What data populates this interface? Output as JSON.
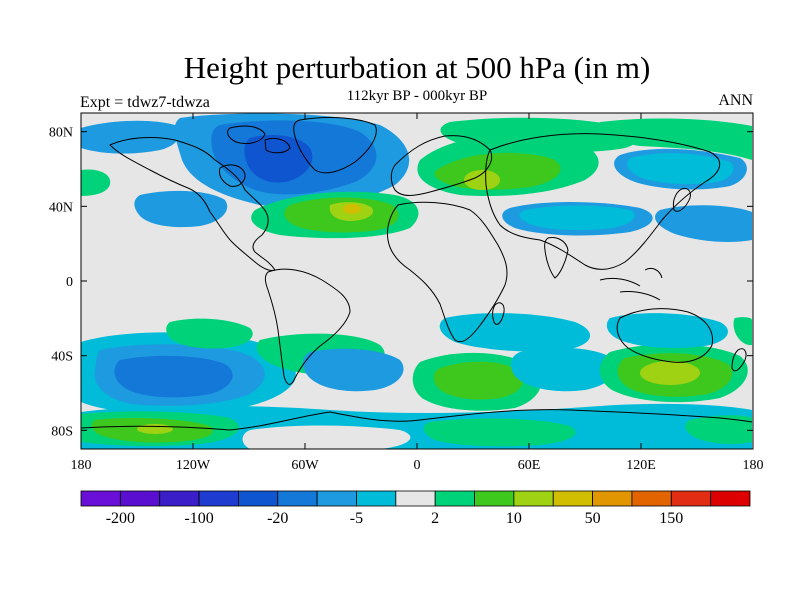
{
  "title": "Height perturbation at 500 hPa (in m)",
  "subtitle": "112kyr BP - 000kyr BP",
  "left_label": "Expt = tdwz7-tdwza",
  "right_label": "ANN",
  "map": {
    "lon_range": [
      -180,
      180
    ],
    "lat_range": [
      -90,
      90
    ],
    "x_ticks": [
      {
        "value": -180,
        "label": "180"
      },
      {
        "value": -120,
        "label": "120W"
      },
      {
        "value": -60,
        "label": "60W"
      },
      {
        "value": 0,
        "label": "0"
      },
      {
        "value": 60,
        "label": "60E"
      },
      {
        "value": 120,
        "label": "120E"
      },
      {
        "value": 180,
        "label": "180"
      }
    ],
    "y_ticks": [
      {
        "value": 80,
        "label": "80N"
      },
      {
        "value": 40,
        "label": "40N"
      },
      {
        "value": 0,
        "label": "0"
      },
      {
        "value": -40,
        "label": "40S"
      },
      {
        "value": -80,
        "label": "80S"
      }
    ],
    "background_color": "#e6e6e6"
  },
  "colorbar": {
    "colors": [
      "#6a0fd8",
      "#5a0fd0",
      "#3a1ec8",
      "#1e3cd0",
      "#0f55d0",
      "#1478d8",
      "#1e9be0",
      "#00bcd8",
      "#e6e6e6",
      "#00d27a",
      "#3ec81e",
      "#a0d214",
      "#d2be00",
      "#e19600",
      "#e16400",
      "#e12d14",
      "#dc0000"
    ],
    "labels": [
      {
        "boundary": 1,
        "text": "-200"
      },
      {
        "boundary": 3,
        "text": "-100"
      },
      {
        "boundary": 5,
        "text": "-20"
      },
      {
        "boundary": 7,
        "text": "-5"
      },
      {
        "boundary": 9,
        "text": "2"
      },
      {
        "boundary": 11,
        "text": "10"
      },
      {
        "boundary": 13,
        "text": "50"
      },
      {
        "boundary": 15,
        "text": "150"
      }
    ]
  }
}
